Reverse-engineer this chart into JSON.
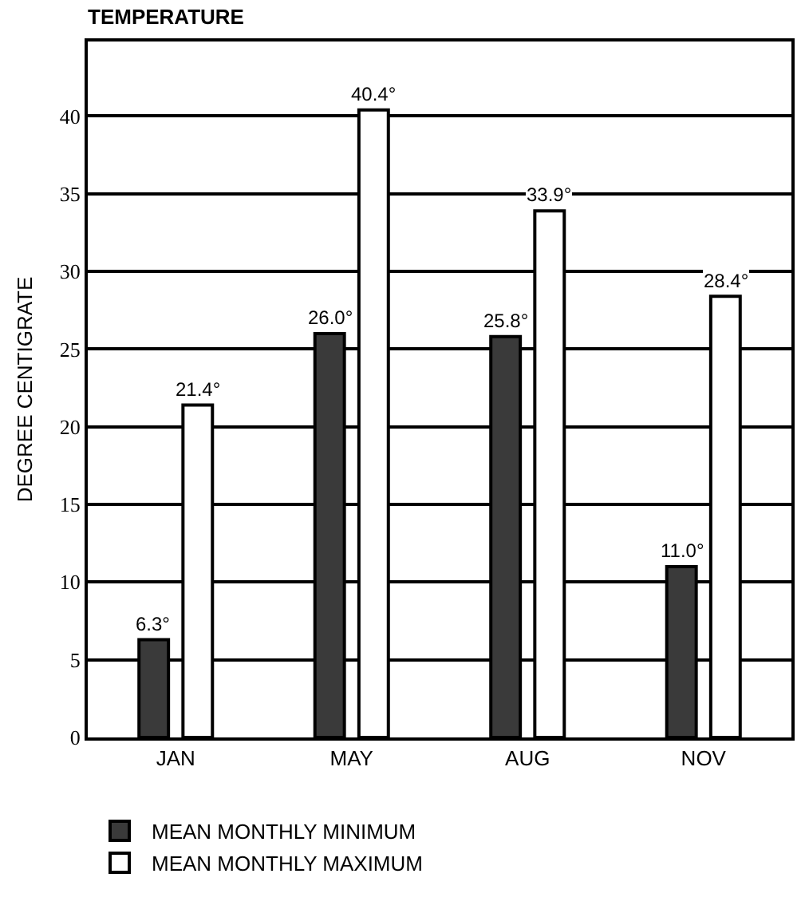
{
  "chart_data": {
    "type": "bar",
    "title": "TEMPERATURE",
    "ylabel": "DEGREE CENTIGRATE",
    "categories": [
      "JAN",
      "MAY",
      "AUG",
      "NOV"
    ],
    "series": [
      {
        "name": "MEAN MONTHLY MINIMUM",
        "color": "#3a3a3a",
        "values": [
          6.3,
          26.0,
          25.8,
          11.0
        ],
        "value_labels": [
          "6.3°",
          "26.0°",
          "25.8°",
          "11.0°"
        ]
      },
      {
        "name": "MEAN MONTHLY MAXIMUM",
        "color": "#ffffff",
        "values": [
          21.4,
          40.4,
          33.9,
          28.4
        ],
        "value_labels": [
          "21.4°",
          "40.4°",
          "33.9°",
          "28.4°"
        ]
      }
    ],
    "ylim": [
      0,
      44.8
    ],
    "yticks": [
      0,
      5,
      10,
      15,
      20,
      25,
      30,
      35,
      40
    ],
    "grid": "y",
    "legend": "bottom left"
  }
}
